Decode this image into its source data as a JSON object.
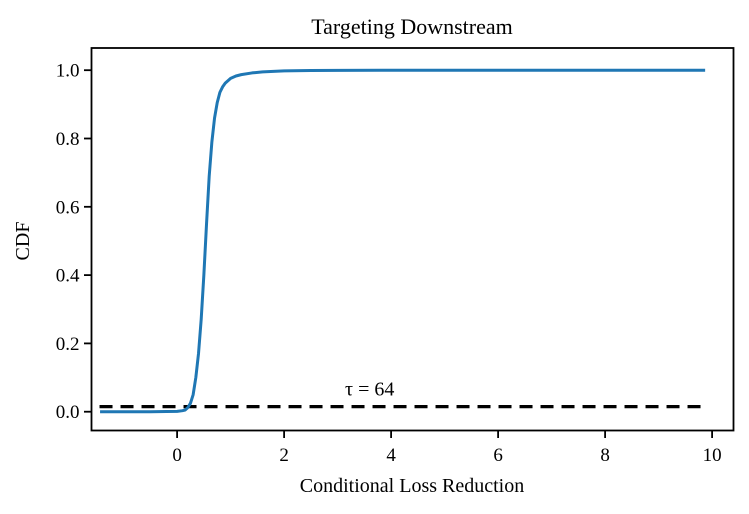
{
  "chart_data": {
    "type": "line",
    "title": "Targeting Downstream",
    "xlabel": "Conditional Loss Reduction",
    "ylabel": "CDF",
    "xlim": [
      -1.6,
      10.4
    ],
    "ylim": [
      -0.055,
      1.065
    ],
    "x_ticks": [
      0,
      2,
      4,
      6,
      8,
      10
    ],
    "x_tick_labels": [
      "0",
      "2",
      "4",
      "6",
      "8",
      "10"
    ],
    "y_ticks": [
      0.0,
      0.2,
      0.4,
      0.6,
      0.8,
      1.0
    ],
    "y_tick_labels": [
      "0.0",
      "0.2",
      "0.4",
      "0.6",
      "0.8",
      "1.0"
    ],
    "grid": false,
    "legend": "none",
    "frame_color": "#000000",
    "series": [
      {
        "name": "cdf-curve",
        "color": "#1f77b4",
        "line_width": 3,
        "points": [
          [
            -1.44,
            0.0
          ],
          [
            -1.0,
            0.0
          ],
          [
            -0.5,
            0.0
          ],
          [
            -0.2,
            0.0005
          ],
          [
            0.0,
            0.001
          ],
          [
            0.1,
            0.003
          ],
          [
            0.15,
            0.005
          ],
          [
            0.2,
            0.012
          ],
          [
            0.25,
            0.025
          ],
          [
            0.3,
            0.05
          ],
          [
            0.35,
            0.1
          ],
          [
            0.4,
            0.17
          ],
          [
            0.45,
            0.27
          ],
          [
            0.5,
            0.4
          ],
          [
            0.55,
            0.55
          ],
          [
            0.6,
            0.69
          ],
          [
            0.65,
            0.79
          ],
          [
            0.7,
            0.86
          ],
          [
            0.75,
            0.905
          ],
          [
            0.8,
            0.935
          ],
          [
            0.85,
            0.951
          ],
          [
            0.9,
            0.962
          ],
          [
            1.0,
            0.976
          ],
          [
            1.1,
            0.983
          ],
          [
            1.2,
            0.987
          ],
          [
            1.4,
            0.992
          ],
          [
            1.6,
            0.995
          ],
          [
            2.0,
            0.998
          ],
          [
            2.5,
            0.999
          ],
          [
            3.0,
            0.9995
          ],
          [
            4.0,
            1.0
          ],
          [
            6.0,
            1.0
          ],
          [
            8.0,
            1.0
          ],
          [
            9.87,
            1.0
          ]
        ]
      }
    ],
    "threshold": {
      "label": "τ = 64",
      "y": 0.015,
      "x_start": -1.45,
      "x_end": 9.82,
      "label_x": 3.6,
      "color": "#000000",
      "dash_on": 13,
      "dash_off": 8,
      "line_width": 3.2
    }
  }
}
